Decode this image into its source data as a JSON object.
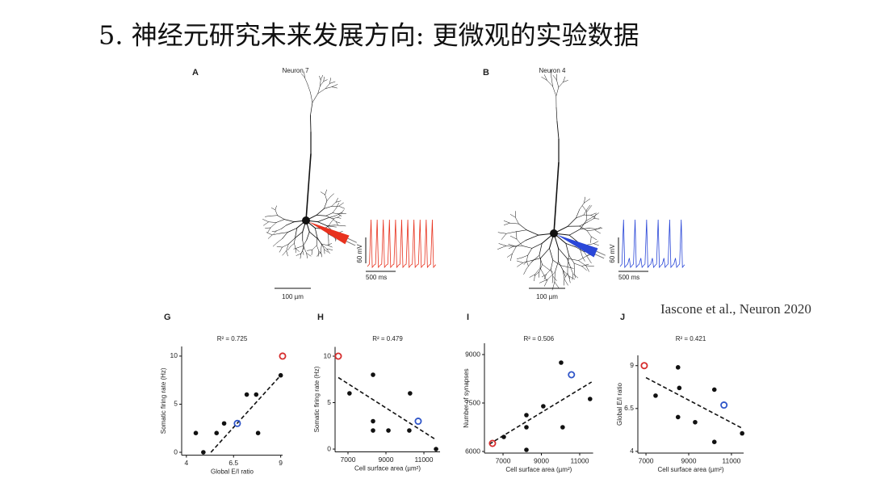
{
  "title": "5. 神经元研究未来发展方向: 更微观的实验数据",
  "citation": "Iascone et al., Neuron 2020",
  "panels": [
    {
      "label": "A",
      "name": "Neuron 7",
      "scale": "100 µm",
      "voltage": "60 mV",
      "time": "500 ms"
    },
    {
      "label": "B",
      "name": "Neuron 4",
      "scale": "100 µm",
      "voltage": "60 mV",
      "time": "500 ms"
    }
  ],
  "chart_data": [
    {
      "type": "scatter",
      "label": "G",
      "annotation": "R² = 0.725",
      "xlabel": "Global E/I ratio",
      "ylabel": "Somatic firing rate (Hz)",
      "xlim": [
        3.75,
        9.1
      ],
      "ylim": [
        -0.3,
        11
      ],
      "xticks": [
        4,
        6.5,
        9
      ],
      "yticks": [
        0,
        5,
        10
      ],
      "series": [
        {
          "color": "#111111",
          "x": [
            4.5,
            4.9,
            5.6,
            6.0,
            7.2,
            7.7,
            7.8,
            9.0
          ],
          "values": [
            2,
            0,
            2,
            3,
            6,
            6,
            2,
            8
          ]
        },
        {
          "color": "#d62c2c",
          "x": [
            9.1
          ],
          "values": [
            10
          ]
        },
        {
          "color": "#2f55c8",
          "x": [
            6.7
          ],
          "values": [
            3
          ]
        }
      ],
      "fit": {
        "x": [
          5.3,
          9.0
        ],
        "y": [
          0,
          8
        ]
      }
    },
    {
      "type": "scatter",
      "label": "H",
      "annotation": "R² = 0.479",
      "xlabel": "Cell surface area (µm²)",
      "ylabel": "Somatic firing rate (Hz)",
      "xlim": [
        6320,
        11850
      ],
      "ylim": [
        -0.3,
        11
      ],
      "xticks": [
        7000,
        9000,
        11000
      ],
      "yticks": [
        0,
        5,
        10
      ],
      "series": [
        {
          "color": "#111111",
          "x": [
            7080,
            8320,
            8320,
            8320,
            9130,
            10230,
            10270,
            11640
          ],
          "values": [
            6,
            8,
            3,
            2,
            2,
            2,
            6,
            0
          ]
        },
        {
          "color": "#d62c2c",
          "x": [
            6490
          ],
          "values": [
            10
          ]
        },
        {
          "color": "#2f55c8",
          "x": [
            10700
          ],
          "values": [
            3
          ]
        }
      ],
      "fit": {
        "x": [
          6490,
          11640
        ],
        "y": [
          7.7,
          1
        ]
      }
    },
    {
      "type": "scatter",
      "label": "I",
      "annotation": "R² = 0.506",
      "xlabel": "Cell surface area (µm²)",
      "ylabel": "Number of synapses",
      "xlim": [
        6030,
        11700
      ],
      "ylim": [
        5950,
        9350
      ],
      "xticks": [
        7000,
        9000,
        11000
      ],
      "yticks": [
        6000,
        7500,
        9000
      ],
      "series": [
        {
          "color": "#111111",
          "x": [
            7040,
            8220,
            8220,
            8220,
            9100,
            10030,
            10110,
            11540
          ],
          "values": [
            6450,
            7125,
            6750,
            6050,
            7400,
            8750,
            6750,
            7625
          ]
        },
        {
          "color": "#d62c2c",
          "x": [
            6450
          ],
          "values": [
            6250
          ]
        },
        {
          "color": "#2f55c8",
          "x": [
            10570
          ],
          "values": [
            8375
          ]
        }
      ],
      "fit": {
        "x": [
          6280,
          11620
        ],
        "y": [
          6225,
          8150
        ]
      }
    },
    {
      "type": "scatter",
      "label": "J",
      "annotation": "R² = 0.421",
      "xlabel": "Cell surface area (µm²)",
      "ylabel": "Global E/I ratio",
      "xlim": [
        6620,
        11570
      ],
      "ylim": [
        3.9,
        9.6
      ],
      "xticks": [
        7000,
        9000,
        11000
      ],
      "yticks": [
        4,
        6.5,
        9
      ],
      "series": [
        {
          "color": "#111111",
          "x": [
            7450,
            8500,
            8560,
            8500,
            9300,
            10200,
            10200,
            11500
          ],
          "values": [
            7.25,
            8.9,
            7.7,
            6.0,
            5.7,
            7.6,
            4.55,
            5.05
          ]
        },
        {
          "color": "#d62c2c",
          "x": [
            6920
          ],
          "values": [
            9.0
          ]
        },
        {
          "color": "#2f55c8",
          "x": [
            10650
          ],
          "values": [
            6.7
          ]
        }
      ],
      "fit": {
        "x": [
          7000,
          11500
        ],
        "y": [
          8.3,
          5.35
        ]
      }
    }
  ]
}
